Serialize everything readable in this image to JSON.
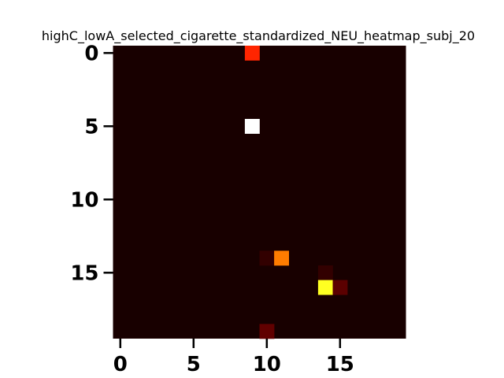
{
  "chart_data": {
    "type": "heatmap",
    "title": "highC_lowA_selected_cigarette_standardized_NEU_heatmap_subj_20",
    "xlabel": "",
    "ylabel": "",
    "grid": false,
    "colormap": "hot",
    "value_range": [
      0,
      1
    ],
    "n_rows": 20,
    "n_cols": 20,
    "x_ticks": [
      0,
      5,
      10,
      15
    ],
    "x_tick_labels": [
      "0",
      "5",
      "10",
      "15"
    ],
    "y_ticks": [
      0,
      5,
      10,
      15
    ],
    "y_tick_labels": [
      "0",
      "5",
      "10",
      "15"
    ],
    "background_value": 0.02,
    "cells": [
      {
        "row": 0,
        "col": 9,
        "value": 0.42
      },
      {
        "row": 5,
        "col": 9,
        "value": 1.0
      },
      {
        "row": 14,
        "col": 10,
        "value": 0.06
      },
      {
        "row": 14,
        "col": 11,
        "value": 0.55
      },
      {
        "row": 15,
        "col": 14,
        "value": 0.06
      },
      {
        "row": 16,
        "col": 14,
        "value": 0.78
      },
      {
        "row": 16,
        "col": 15,
        "value": 0.12
      },
      {
        "row": 19,
        "col": 10,
        "value": 0.13
      }
    ]
  }
}
